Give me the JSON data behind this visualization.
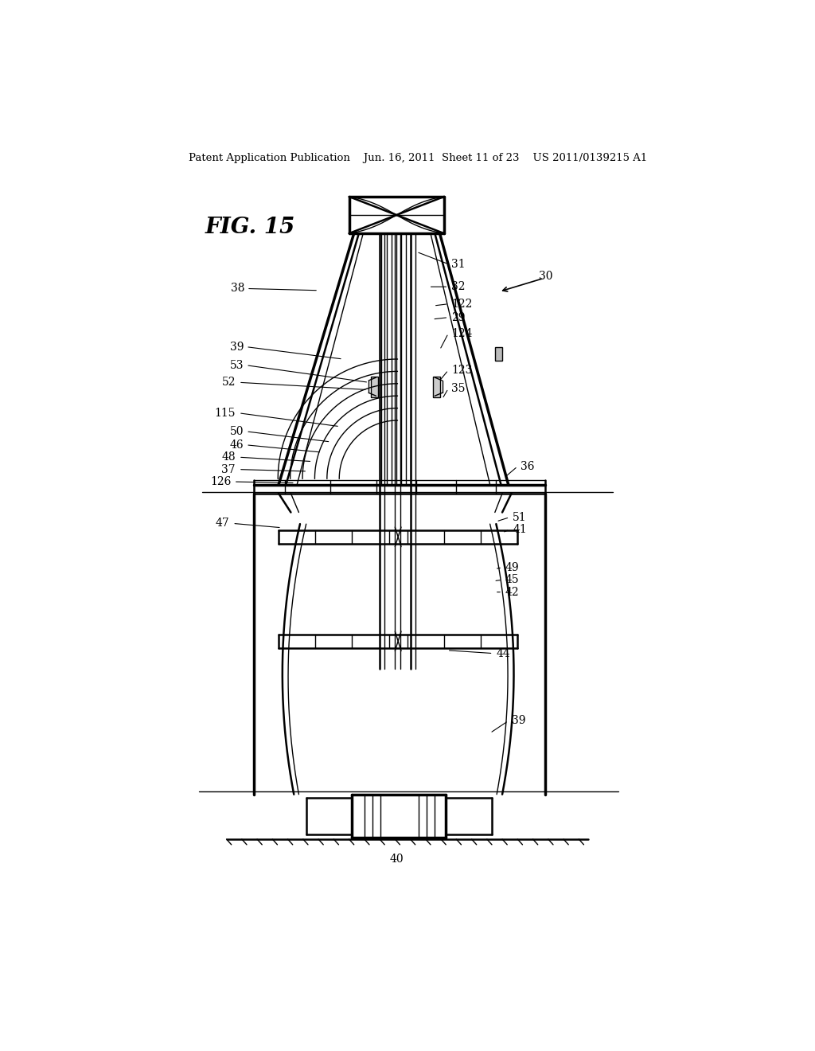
{
  "bg_color": "#ffffff",
  "line_color": "#000000",
  "header_text": "Patent Application Publication    Jun. 16, 2011  Sheet 11 of 23    US 2011/0139215 A1",
  "fig_label": "FIG. 15",
  "label_fontsize": 10,
  "header_fontsize": 9.5
}
